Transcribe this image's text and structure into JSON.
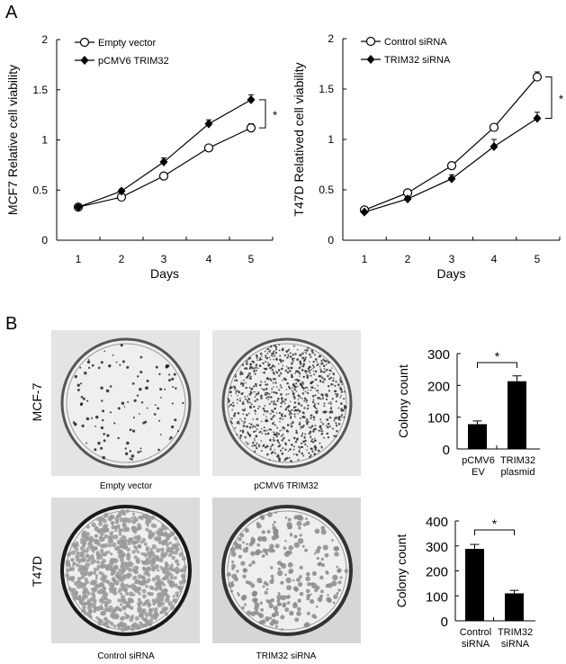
{
  "panel_labels": {
    "a": "A",
    "b": "B"
  },
  "row_labels": {
    "mcf7": "MCF-7",
    "t47d": "T47D"
  },
  "plate_labels": [
    "Empty vector",
    "pCMV6 TRIM32",
    "Control siRNA",
    "TRIM32 siRNA"
  ],
  "chart_data": [
    {
      "type": "line",
      "xlabel": "Days",
      "ylabel": "MCF7 Relative cell viability",
      "x": [
        1,
        2,
        3,
        4,
        5
      ],
      "ylim": [
        0,
        2
      ],
      "yticks": [
        "0",
        "0.5",
        "1",
        "1.5",
        "2"
      ],
      "xticks": [
        "1",
        "2",
        "3",
        "4",
        "5"
      ],
      "legend_position": "top-left",
      "significance": "*",
      "series": [
        {
          "name": "Empty vector",
          "marker": "open-circle",
          "values": [
            0.33,
            0.43,
            0.64,
            0.92,
            1.12
          ],
          "errors": [
            0.02,
            0.02,
            0.03,
            0.02,
            0.04
          ]
        },
        {
          "name": "pCMV6 TRIM32",
          "marker": "filled-diamond",
          "values": [
            0.33,
            0.49,
            0.78,
            1.16,
            1.4
          ],
          "errors": [
            0.02,
            0.02,
            0.04,
            0.04,
            0.05
          ]
        }
      ]
    },
    {
      "type": "line",
      "xlabel": "Days",
      "ylabel": "T47D Relatived cell viability",
      "x": [
        1,
        2,
        3,
        4,
        5
      ],
      "ylim": [
        0,
        2
      ],
      "yticks": [
        "0",
        "0.5",
        "1",
        "1.5",
        "2"
      ],
      "xticks": [
        "1",
        "2",
        "3",
        "4",
        "5"
      ],
      "legend_position": "top-left",
      "significance": "*",
      "series": [
        {
          "name": "Control siRNA",
          "marker": "open-circle",
          "values": [
            0.3,
            0.47,
            0.74,
            1.12,
            1.62
          ],
          "errors": [
            0.01,
            0.02,
            0.02,
            0.03,
            0.05
          ]
        },
        {
          "name": "TRIM32 siRNA",
          "marker": "filled-diamond",
          "values": [
            0.28,
            0.41,
            0.61,
            0.93,
            1.21
          ],
          "errors": [
            0.01,
            0.02,
            0.04,
            0.07,
            0.06
          ]
        }
      ]
    },
    {
      "type": "bar",
      "ylabel": "Colony count",
      "categories": [
        [
          "pCMV6",
          "EV"
        ],
        [
          "TRIM32",
          "plasmid"
        ]
      ],
      "values": [
        78,
        213
      ],
      "errors": [
        10,
        17
      ],
      "ylim": [
        0,
        300
      ],
      "yticks": [
        "0",
        "100",
        "200",
        "300"
      ],
      "significance": "*",
      "bar_color": "#000000"
    },
    {
      "type": "bar",
      "ylabel": "Colony count",
      "categories": [
        [
          "Control",
          "siRNA"
        ],
        [
          "TRIM32",
          "siRNA"
        ]
      ],
      "values": [
        288,
        110
      ],
      "errors": [
        18,
        12
      ],
      "ylim": [
        0,
        400
      ],
      "yticks": [
        "0",
        "100",
        "200",
        "300",
        "400"
      ],
      "significance": "*",
      "bar_color": "#000000"
    }
  ]
}
